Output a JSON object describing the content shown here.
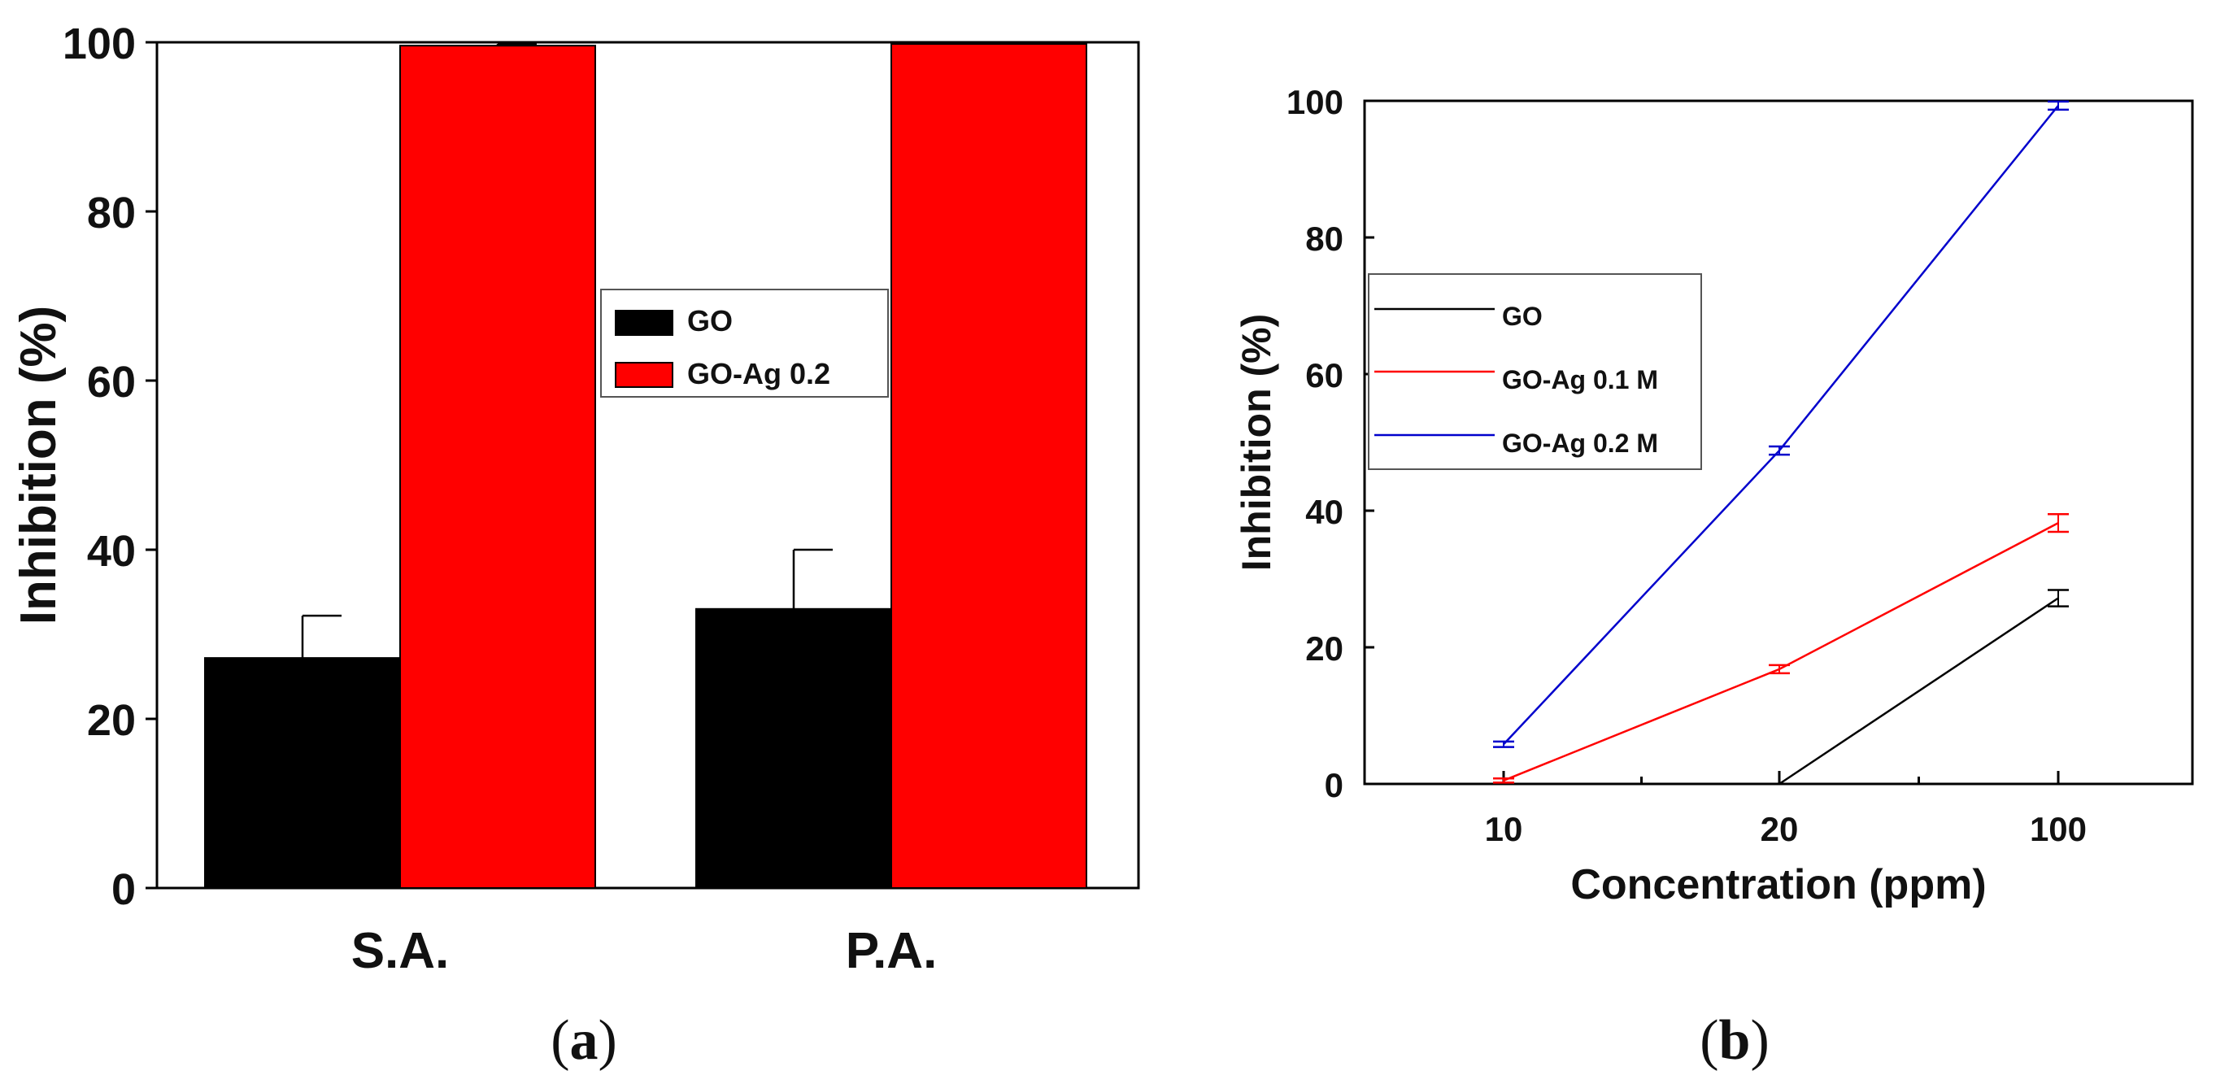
{
  "chart_data": [
    {
      "id": "a",
      "type": "bar",
      "panel_label": {
        "open": "(",
        "letter": "a",
        "close": ")"
      },
      "categories": [
        "S.A.",
        "P.A."
      ],
      "series": [
        {
          "name": "GO",
          "color": "#000000",
          "values": [
            27.2,
            33.0
          ],
          "errors": [
            5.0,
            7.0
          ]
        },
        {
          "name": "GO-Ag 0.2",
          "color": "#ff0000",
          "values": [
            99.6,
            99.8
          ],
          "errors": [
            0.2,
            0.1
          ]
        }
      ],
      "ylabel": "Inhibition (%)",
      "xlabel": "",
      "ylim": [
        0,
        100
      ],
      "yticks": [
        "0",
        "20",
        "40",
        "60",
        "80",
        "100"
      ],
      "legend_position": "center-right"
    },
    {
      "id": "b",
      "type": "line",
      "panel_label": {
        "open": "(",
        "letter": "b",
        "close": ")"
      },
      "categories": [
        "10",
        "20",
        "100"
      ],
      "series": [
        {
          "name": "GO",
          "color": "#000000",
          "values": [
            null,
            0.0,
            27.2
          ],
          "errors": [
            null,
            0,
            1.2
          ]
        },
        {
          "name": "GO-Ag 0.1 M",
          "color": "#ff0000",
          "values": [
            0.5,
            16.8,
            38.2
          ],
          "errors": [
            0.3,
            0.6,
            1.3
          ]
        },
        {
          "name": "GO-Ag 0.2 M",
          "color": "#0000cc",
          "values": [
            5.8,
            48.8,
            99.3
          ],
          "errors": [
            0.4,
            0.6,
            0.6
          ]
        }
      ],
      "ylabel": "Inhibition (%)",
      "xlabel": "Concentration (ppm)",
      "ylim": [
        0,
        100
      ],
      "yticks": [
        "0",
        "20",
        "40",
        "60",
        "80",
        "100"
      ],
      "legend_position": "center-left"
    }
  ]
}
